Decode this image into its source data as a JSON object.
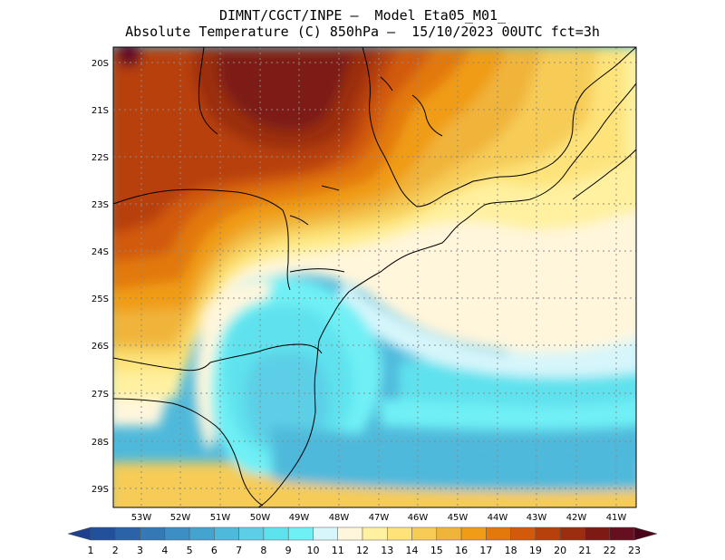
{
  "title_line1": "DIMNT/CGCT/INPE –  Model Eta05_M01_",
  "title_line2": "Absolute Temperature (C) 850hPa –  15/10/2023 00UTC fct=3h",
  "map": {
    "lat_labels": [
      "20S",
      "21S",
      "22S",
      "23S",
      "24S",
      "25S",
      "26S",
      "27S",
      "28S",
      "29S"
    ],
    "lon_labels": [
      "53W",
      "52W",
      "51W",
      "50W",
      "49W",
      "48W",
      "47W",
      "46W",
      "45W",
      "44W",
      "43W",
      "42W",
      "41W"
    ]
  },
  "colorbar": {
    "labels": [
      "1",
      "2",
      "3",
      "4",
      "5",
      "6",
      "7",
      "8",
      "9",
      "10",
      "11",
      "12",
      "13",
      "14",
      "15",
      "16",
      "17",
      "18",
      "19",
      "20",
      "21",
      "22",
      "23"
    ],
    "colors": [
      "#1f3f8f",
      "#22509a",
      "#2a63a8",
      "#3478b5",
      "#3c8ec4",
      "#45a3d0",
      "#4fb9db",
      "#5ccfe6",
      "#5ee2ee",
      "#6ff0f5",
      "#d6f6fb",
      "#fff6dc",
      "#fff1a0",
      "#fde37a",
      "#f6cc57",
      "#f0b43a",
      "#f09c16",
      "#e2790a",
      "#d25a0a",
      "#b7410c",
      "#9b2e0e",
      "#7d1a14",
      "#650f20",
      "#4a0318"
    ]
  }
}
